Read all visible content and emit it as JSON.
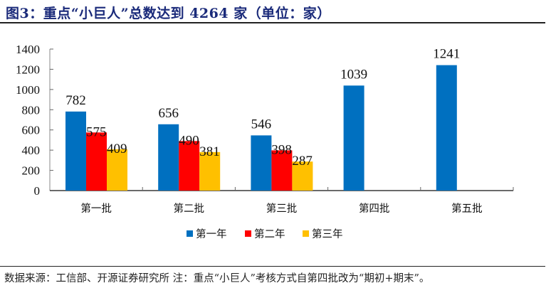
{
  "title": "图3：重点“小巨人”总数达到 4264 家（单位：家）",
  "source_note": "数据来源：工信部、开源证券研究所 注：重点“小巨人”考核方式自第四批改为“期初+期末”。",
  "colors": {
    "series1": "#0070C0",
    "series2": "#FF0000",
    "series3": "#FFC000",
    "title": "#1a2a7a"
  },
  "chart_data": {
    "type": "bar",
    "title": "重点“小巨人”总数达到 4264 家（单位：家）",
    "xlabel": "",
    "ylabel": "",
    "ylim": [
      0,
      1400
    ],
    "yticks": [
      0,
      200,
      400,
      600,
      800,
      1000,
      1200,
      1400
    ],
    "grid": false,
    "legend_position": "bottom",
    "categories": [
      "第一批",
      "第二批",
      "第三批",
      "第四批",
      "第五批"
    ],
    "series": [
      {
        "name": "第一年",
        "color": "#0070C0",
        "values": [
          782,
          656,
          546,
          1039,
          1241
        ]
      },
      {
        "name": "第二年",
        "color": "#FF0000",
        "values": [
          575,
          490,
          398,
          null,
          null
        ]
      },
      {
        "name": "第三年",
        "color": "#FFC000",
        "values": [
          409,
          381,
          287,
          null,
          null
        ]
      }
    ]
  }
}
